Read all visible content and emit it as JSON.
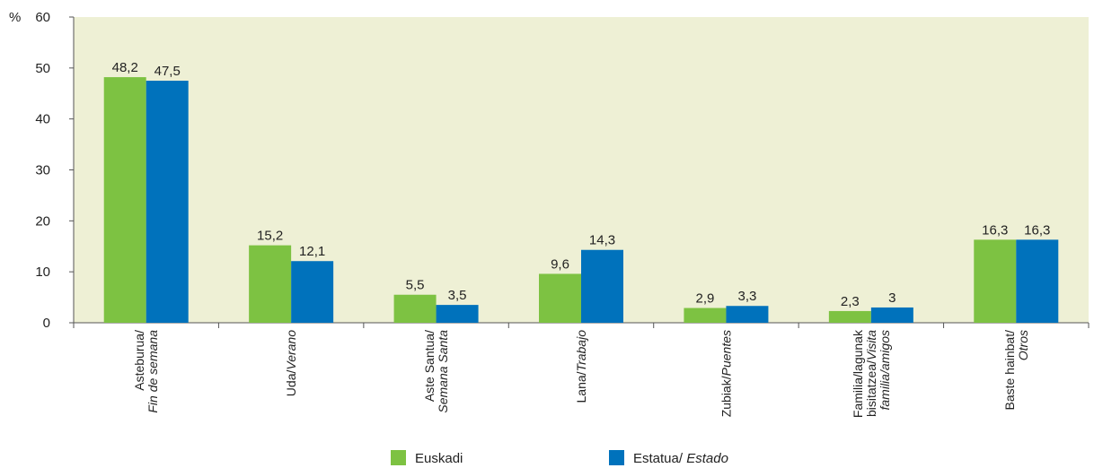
{
  "chart_data": {
    "type": "bar",
    "ylabel": "%",
    "ylim": [
      0,
      60
    ],
    "yticks": [
      0,
      10,
      20,
      30,
      40,
      50,
      60
    ],
    "grid": false,
    "background": "#eef0d5",
    "legend_position": "bottom",
    "categories": [
      [
        {
          "text": "Asteburua/",
          "italic": false
        },
        {
          "text": "Fin de semana",
          "italic": true
        }
      ],
      [
        {
          "text": "Uda/",
          "italic": false,
          "join": "Verano"
        }
      ],
      [
        {
          "text": "Aste Santua/",
          "italic": false
        },
        {
          "text": "Semana Santa",
          "italic": true
        }
      ],
      [
        {
          "text": "Lana/",
          "italic": false,
          "join": "Trabajo"
        }
      ],
      [
        {
          "text": "Zubiak/",
          "italic": false,
          "join": "Puentes"
        }
      ],
      [
        {
          "text": "Familia/lagunak",
          "italic": false
        },
        {
          "text": "bisitatzea/",
          "italic": false,
          "join": "Visita"
        },
        {
          "text": "familia/amigos",
          "italic": true
        }
      ],
      [
        {
          "text": "Baste hainbat/",
          "italic": false
        },
        {
          "text": "Otros",
          "italic": true
        }
      ]
    ],
    "series": [
      {
        "name": "Euskadi",
        "name_italic": "",
        "color": "#7dc242",
        "values": [
          48.2,
          15.2,
          5.5,
          9.6,
          2.9,
          2.3,
          16.3
        ],
        "labels": [
          "48,2",
          "15,2",
          "5,5",
          "9,6",
          "2,9",
          "2,3",
          "16,3"
        ]
      },
      {
        "name": "Estatua/",
        "name_italic": "Estado",
        "color": "#0072bc",
        "values": [
          47.5,
          12.1,
          3.5,
          14.3,
          3.3,
          3.0,
          16.3
        ],
        "labels": [
          "47,5",
          "12,1",
          "3,5",
          "14,3",
          "3,3",
          "3",
          "16,3"
        ]
      }
    ]
  }
}
